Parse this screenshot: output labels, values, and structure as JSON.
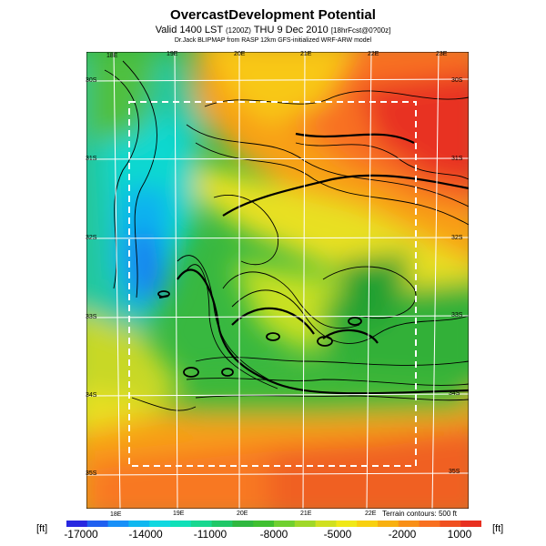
{
  "title": "OvercastDevelopment Potential",
  "subtitle": {
    "main": "Valid 1400 LST",
    "code": "(1200Z)",
    "date": "THU 9 Dec 2010",
    "fcst": "[18hrFcst@0?00z]"
  },
  "model_line": "Dr.Jack BLIPMAP from RASP 12km GFS-initialized WRF-ARW model",
  "lon_top": [
    "18E",
    "19E",
    "20E",
    "21E",
    "22E",
    "23E"
  ],
  "lon_bottom": [
    "18E",
    "19E",
    "20E",
    "21E",
    "22E"
  ],
  "lat_left": [
    "30S",
    "31S",
    "32S",
    "33S",
    "34S",
    "35S"
  ],
  "lat_right": [
    "30S",
    "31S",
    "32S",
    "33S",
    "34S",
    "35S"
  ],
  "terrain_note": "Terrain contours: 500 ft",
  "colorbar": {
    "unit_left": "[ft]",
    "unit_right": "[ft]",
    "ticks": [
      "-17000",
      "-14000",
      "-11000",
      "-8000",
      "-5000",
      "-2000",
      "1000"
    ],
    "colors": [
      "#2828e0",
      "#2060f0",
      "#1890f8",
      "#10b8f0",
      "#10d8e0",
      "#10e0b8",
      "#18d890",
      "#20c868",
      "#30b840",
      "#40c030",
      "#70d030",
      "#a0d828",
      "#d0e020",
      "#f0e818",
      "#f8d010",
      "#f8b010",
      "#f89018",
      "#f87020",
      "#f05020",
      "#e83020"
    ]
  }
}
